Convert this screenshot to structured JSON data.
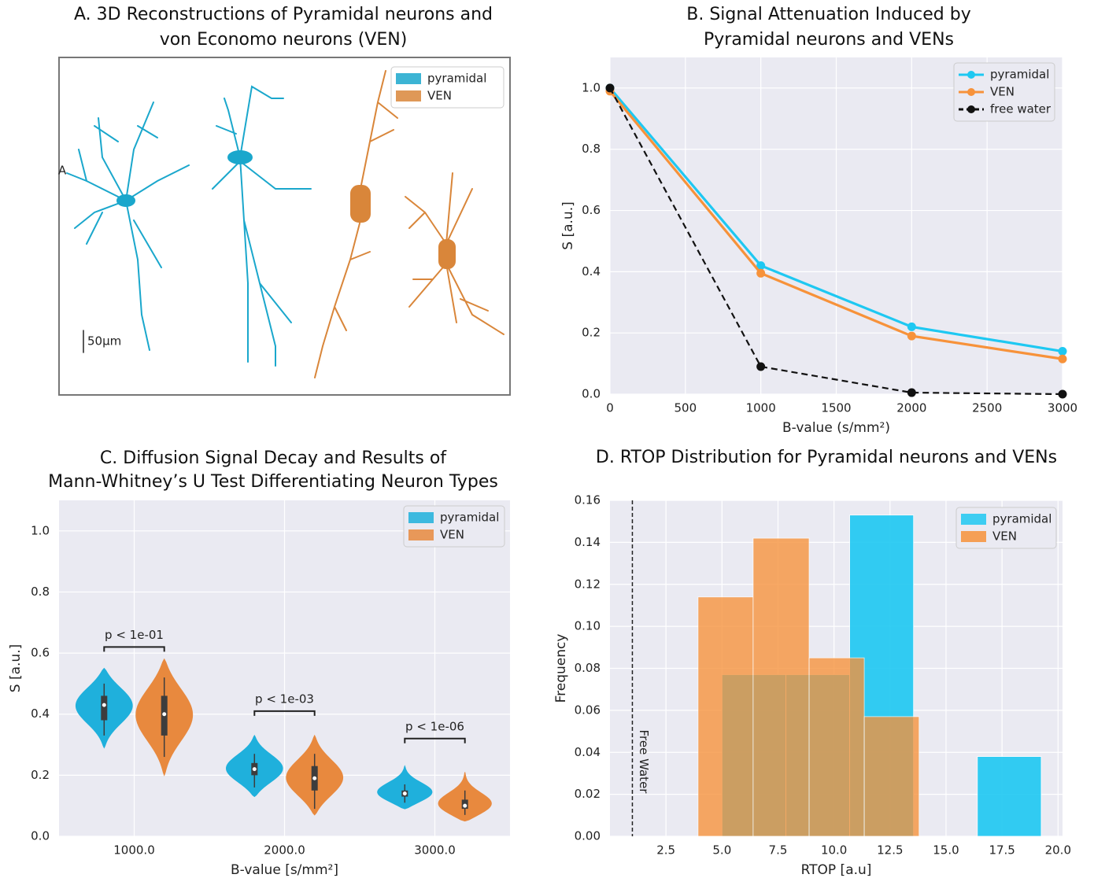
{
  "chart_data": [
    {
      "type": "image",
      "title": [
        "A. 3D Reconstructions of Pyramidal neurons and",
        "von Economo neurons (VEN)"
      ],
      "series": [
        {
          "name": "pyramidal",
          "color": "#1aa7cc"
        },
        {
          "name": "VEN",
          "color": "#d9863a"
        }
      ],
      "annotations": [
        "A",
        "50µm"
      ]
    },
    {
      "type": "line",
      "title": [
        "B. Signal Attenuation Induced by",
        "Pyramidal neurons and VENs"
      ],
      "x": [
        0,
        1000,
        2000,
        3000
      ],
      "series": [
        {
          "name": "pyramidal",
          "color": "#1ec8f2",
          "linestyle": "solid",
          "values": [
            1.0,
            0.42,
            0.22,
            0.14
          ]
        },
        {
          "name": "VEN",
          "color": "#f7923a",
          "linestyle": "solid",
          "values": [
            0.99,
            0.395,
            0.19,
            0.115
          ]
        },
        {
          "name": "free water",
          "color": "#111111",
          "linestyle": "dashed",
          "values": [
            1.0,
            0.09,
            0.005,
            0.0
          ]
        }
      ],
      "xlim": [
        0,
        3000
      ],
      "ylim": [
        0,
        1.1
      ],
      "xticks": [
        0,
        500,
        1000,
        1500,
        2000,
        2500,
        3000
      ],
      "yticks": [
        {
          "value": 0,
          "label": "0.0"
        },
        0.2,
        0.4,
        0.6,
        0.8,
        {
          "value": 1,
          "label": "1.0"
        }
      ],
      "xlabel": "B-value (s/mm²)",
      "ylabel": "S [a.u.]",
      "grid": true,
      "legend": "upper right"
    },
    {
      "type": "violin",
      "title": [
        "C. Diffusion Signal Decay and Results of",
        "Mann-Whitney’s U Test Differentiating Neuron Types"
      ],
      "categories": [
        "1000.0",
        "2000.0",
        "3000.0"
      ],
      "series": [
        {
          "name": "pyramidal",
          "color": "#1fb0dc",
          "min": [
            0.29,
            0.13,
            0.09
          ],
          "max": [
            0.55,
            0.33,
            0.23
          ],
          "whisker_low": [
            0.33,
            0.16,
            0.11
          ],
          "whisker_high": [
            0.5,
            0.27,
            0.17
          ],
          "q1": [
            0.38,
            0.2,
            0.13
          ],
          "q3": [
            0.46,
            0.24,
            0.15
          ],
          "median": [
            0.43,
            0.22,
            0.14
          ]
        },
        {
          "name": "VEN",
          "color": "#e8893e",
          "min": [
            0.2,
            0.07,
            0.05
          ],
          "max": [
            0.58,
            0.33,
            0.21
          ],
          "whisker_low": [
            0.26,
            0.09,
            0.07
          ],
          "whisker_high": [
            0.52,
            0.27,
            0.15
          ],
          "q1": [
            0.33,
            0.15,
            0.09
          ],
          "q3": [
            0.46,
            0.23,
            0.12
          ],
          "median": [
            0.4,
            0.19,
            0.1
          ]
        }
      ],
      "annotations": [
        {
          "text": "p < 1e-01",
          "y": 0.62
        },
        {
          "text": "p < 1e-03",
          "y": 0.41
        },
        {
          "text": "p < 1e-06",
          "y": 0.32
        }
      ],
      "ylim": [
        0,
        1.1
      ],
      "yticks": [
        {
          "value": 0,
          "label": "0.0"
        },
        0.2,
        0.4,
        0.6,
        0.8,
        {
          "value": 1,
          "label": "1.0"
        }
      ],
      "xlabel": "B-value [s/mm²]",
      "ylabel": "S [a.u.]",
      "grid": true,
      "legend": "upper right"
    },
    {
      "type": "histogram",
      "title": [
        "D. RTOP Distribution for Pyramidal neurons and VENs"
      ],
      "series": [
        {
          "name": "pyramidal",
          "color": "#1ec8f2",
          "bins": [
            5.0,
            7.85,
            10.7,
            13.55,
            16.4,
            19.25
          ],
          "values": [
            0.077,
            0.077,
            0.153,
            0.0,
            0.038
          ]
        },
        {
          "name": "VEN",
          "color": "#f7923a",
          "bins": [
            3.93,
            6.39,
            8.89,
            11.35,
            13.8
          ],
          "values": [
            0.114,
            0.142,
            0.085,
            0.057
          ]
        }
      ],
      "annotations": [
        {
          "x": 1.0,
          "text": "Free Water"
        }
      ],
      "xlim": [
        0,
        20.2
      ],
      "ylim": [
        0,
        0.16
      ],
      "xticks": [
        2.5,
        {
          "value": 5,
          "label": "5.0"
        },
        7.5,
        {
          "value": 10,
          "label": "10.0"
        },
        12.5,
        {
          "value": 15,
          "label": "15.0"
        },
        17.5,
        {
          "value": 20,
          "label": "20.0"
        }
      ],
      "yticks": [
        {
          "value": 0,
          "label": "0.00"
        },
        {
          "value": 0.02,
          "label": "0.02"
        },
        {
          "value": 0.04,
          "label": "0.04"
        },
        {
          "value": 0.06,
          "label": "0.06"
        },
        {
          "value": 0.08,
          "label": "0.08"
        },
        {
          "value": 0.1,
          "label": "0.10"
        },
        {
          "value": 0.12,
          "label": "0.12"
        },
        {
          "value": 0.14,
          "label": "0.14"
        },
        {
          "value": 0.16,
          "label": "0.16"
        }
      ],
      "xlabel": "RTOP [a.u]",
      "ylabel": "Frequency",
      "grid": true,
      "legend": "upper right"
    }
  ]
}
